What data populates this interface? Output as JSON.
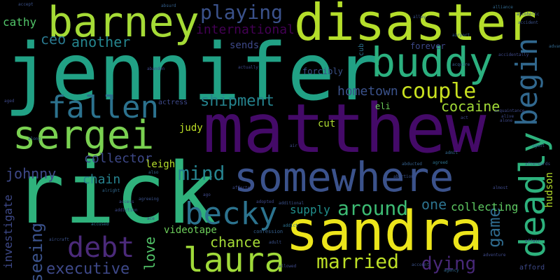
{
  "words": [
    {
      "text": "jennifer",
      "color": "#21a185"
    },
    {
      "text": "matthew",
      "color": "#440a68"
    },
    {
      "text": "rick",
      "color": "#2fb27c"
    },
    {
      "text": "disaster",
      "color": "#b5de2b"
    },
    {
      "text": "sandra",
      "color": "#ece51b"
    },
    {
      "text": "somewhere",
      "color": "#3b528b"
    },
    {
      "text": "barney",
      "color": "#a5db36"
    },
    {
      "text": "buddy",
      "color": "#2bb07f"
    },
    {
      "text": "sergei",
      "color": "#7ad151"
    },
    {
      "text": "deadly",
      "color": "#2db27d"
    },
    {
      "text": "begin",
      "color": "#31688e"
    },
    {
      "text": "fallen",
      "color": "#2c728e"
    },
    {
      "text": "becky",
      "color": "#2c738e"
    },
    {
      "text": "laura",
      "color": "#a0da39"
    },
    {
      "text": "debt",
      "color": "#4b2a7a"
    },
    {
      "text": "couple",
      "color": "#c8e020"
    },
    {
      "text": "playing",
      "color": "#3b528b"
    },
    {
      "text": "mind",
      "color": "#26828e"
    },
    {
      "text": "married",
      "color": "#bddf26"
    },
    {
      "text": "around",
      "color": "#3dbc74"
    },
    {
      "text": "cocaine",
      "color": "#a2da37"
    },
    {
      "text": "shipment",
      "color": "#25838e"
    },
    {
      "text": "game",
      "color": "#2f6b8e"
    },
    {
      "text": "seeing",
      "color": "#3b528b"
    },
    {
      "text": "dying",
      "color": "#482878"
    },
    {
      "text": "executive",
      "color": "#3e4989"
    },
    {
      "text": "another",
      "color": "#25858e"
    },
    {
      "text": "international",
      "color": "#440154"
    },
    {
      "text": "chance",
      "color": "#a5db36"
    },
    {
      "text": "ceo",
      "color": "#2a788e"
    },
    {
      "text": "cathy",
      "color": "#52c569"
    },
    {
      "text": "johnny",
      "color": "#3e4989"
    },
    {
      "text": "collector",
      "color": "#3e4989"
    },
    {
      "text": "hometown",
      "color": "#3b528b"
    },
    {
      "text": "love",
      "color": "#52c569"
    },
    {
      "text": "chain",
      "color": "#26828e"
    },
    {
      "text": "one",
      "color": "#2c728e"
    },
    {
      "text": "supply",
      "color": "#21908d"
    },
    {
      "text": "collecting",
      "color": "#5ec962"
    },
    {
      "text": "investigate",
      "color": "#3e4989"
    },
    {
      "text": "hudson",
      "color": "#b5de2b"
    },
    {
      "text": "videotape",
      "color": "#6ccd5a"
    },
    {
      "text": "leigh",
      "color": "#b5de2b"
    },
    {
      "text": "judy",
      "color": "#bddf26"
    },
    {
      "text": "cut",
      "color": "#addc30"
    },
    {
      "text": "eli",
      "color": "#6ccd5a"
    },
    {
      "text": "sends",
      "color": "#3e4989"
    },
    {
      "text": "forcibly",
      "color": "#3b528b"
    },
    {
      "text": "forever",
      "color": "#3e4989"
    },
    {
      "text": "actress",
      "color": "#3e4989"
    },
    {
      "text": "cub",
      "color": "#2c728e"
    },
    {
      "text": "afford",
      "color": "#3e4989"
    },
    {
      "text": "confession",
      "color": "#35608d"
    },
    {
      "text": "actually",
      "color": "#3e4989"
    },
    {
      "text": "alcoholic",
      "color": "#3b528b"
    },
    {
      "text": "alliance",
      "color": "#31688e"
    },
    {
      "text": "advantage",
      "color": "#31688e"
    },
    {
      "text": "acquaintance",
      "color": "#3e4989"
    },
    {
      "text": "accidentally",
      "color": "#3e4989"
    },
    {
      "text": "airport",
      "color": "#35608d"
    },
    {
      "text": "alive",
      "color": "#3e4989"
    },
    {
      "text": "agreed",
      "color": "#2c728e"
    },
    {
      "text": "alright",
      "color": "#31688e"
    },
    {
      "text": "aircraft",
      "color": "#3b528b"
    },
    {
      "text": "afterwards",
      "color": "#3b528b"
    },
    {
      "text": "acquire",
      "color": "#35608d"
    },
    {
      "text": "addiction",
      "color": "#3e4989"
    },
    {
      "text": "admit",
      "color": "#31688e"
    },
    {
      "text": "adopted",
      "color": "#3e4989"
    },
    {
      "text": "abortion",
      "color": "#3b528b"
    },
    {
      "text": "accused",
      "color": "#2c728e"
    },
    {
      "text": "affair",
      "color": "#3e4989"
    },
    {
      "text": "agency",
      "color": "#31688e"
    },
    {
      "text": "alone",
      "color": "#3e4989"
    },
    {
      "text": "absurd",
      "color": "#35608d"
    },
    {
      "text": "accept",
      "color": "#3b528b"
    },
    {
      "text": "affected",
      "color": "#3e4989"
    },
    {
      "text": "addict",
      "color": "#2c728e"
    },
    {
      "text": "aged",
      "color": "#3e4989"
    },
    {
      "text": "alley",
      "color": "#3b528b"
    },
    {
      "text": "along",
      "color": "#35608d"
    },
    {
      "text": "abandon",
      "color": "#3e4989"
    },
    {
      "text": "allowed",
      "color": "#3e4989"
    },
    {
      "text": "agreeing",
      "color": "#3b528b"
    },
    {
      "text": "ago",
      "color": "#3e4989"
    },
    {
      "text": "also",
      "color": "#31688e"
    },
    {
      "text": "adult",
      "color": "#3b528b"
    },
    {
      "text": "adventure",
      "color": "#3e4989"
    },
    {
      "text": "abducted",
      "color": "#35608d"
    },
    {
      "text": "air",
      "color": "#3e4989"
    },
    {
      "text": "accident",
      "color": "#3b528b"
    },
    {
      "text": "almost",
      "color": "#3e4989"
    },
    {
      "text": "agent",
      "color": "#31688e"
    },
    {
      "text": "access",
      "color": "#3e4989"
    },
    {
      "text": "additional",
      "color": "#3b528b"
    },
    {
      "text": "ace",
      "color": "#3e4989"
    },
    {
      "text": "act",
      "color": "#3e4989"
    },
    {
      "text": "account",
      "color": "#3b528b"
    }
  ]
}
